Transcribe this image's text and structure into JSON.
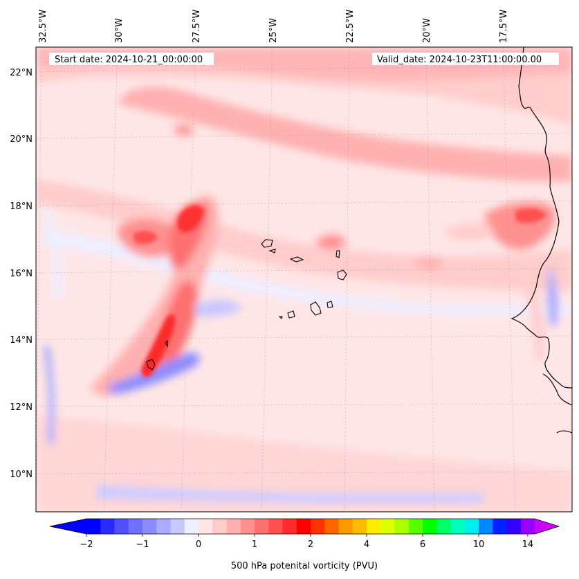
{
  "header": {
    "start_date": "Start date: 2024-10-21_00:00:00",
    "valid_date": "Valid_date: 2024-10-23T11:00:00.00"
  },
  "lon_labels": [
    "32.5°W",
    "30°W",
    "27.5°W",
    "25°W",
    "22.5°W",
    "20°W",
    "17.5°W"
  ],
  "lat_labels": [
    "22°N",
    "20°N",
    "18°N",
    "16°N",
    "14°N",
    "12°N",
    "10°N"
  ],
  "colorbar": {
    "label": "500 hPa potenital vorticity (PVU)",
    "tick_labels": [
      "−2",
      "−1",
      "0",
      "1",
      "2",
      "4",
      "6",
      "10",
      "14"
    ],
    "colors": [
      "#0000ff",
      "#2a2aff",
      "#5050ff",
      "#7070ff",
      "#8c8cff",
      "#aaaaff",
      "#c8c8ff",
      "#eeeeff",
      "#ffe6e6",
      "#ffcccc",
      "#ffb0b0",
      "#ff9090",
      "#ff7070",
      "#ff5050",
      "#ff2a2a",
      "#ff0000",
      "#ff3300",
      "#ff6600",
      "#ff9900",
      "#ffbb00",
      "#ffee00",
      "#ddff00",
      "#aaff00",
      "#55ff00",
      "#00ff00",
      "#00ff66",
      "#00ffbb",
      "#00eeee",
      "#0088ff",
      "#0022ff",
      "#3300ff",
      "#9900ff"
    ],
    "under_color": "#0000ff",
    "over_color": "#cc00ff"
  },
  "map": {
    "extent_lon": [
      -33,
      -15.5
    ],
    "extent_lat": [
      9,
      22.8
    ],
    "background_color": "#ffe6e6"
  }
}
